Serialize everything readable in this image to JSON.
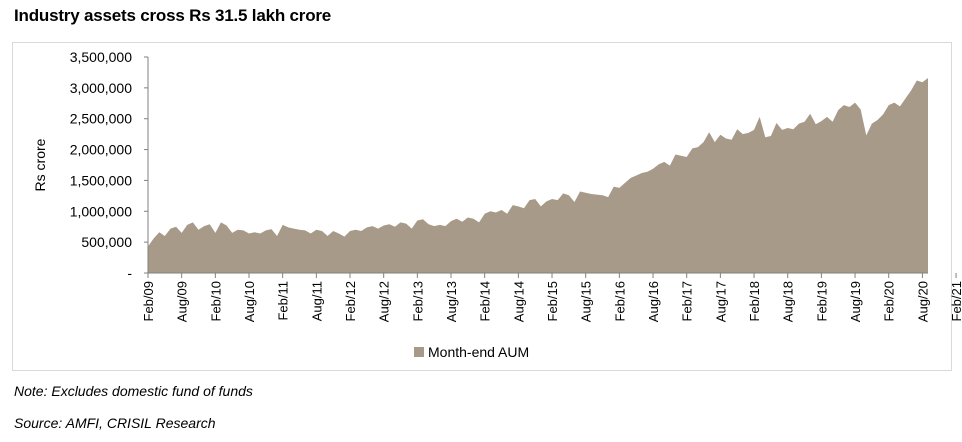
{
  "title": "Industry assets cross Rs 31.5 lakh crore",
  "note": "Note: Excludes domestic fund of funds",
  "source": "Source: AMFI, CRISIL Research",
  "colors": {
    "area": "#a79a89",
    "axis": "#808080"
  },
  "chart_data": {
    "type": "area",
    "ylabel": "Rs crore",
    "ylim": [
      0,
      3500000
    ],
    "yticks": [
      {
        "value": 0,
        "label": "-"
      },
      {
        "value": 500000,
        "label": "500,000"
      },
      {
        "value": 1000000,
        "label": "1,000,000"
      },
      {
        "value": 1500000,
        "label": "1,500,000"
      },
      {
        "value": 2000000,
        "label": "2,000,000"
      },
      {
        "value": 2500000,
        "label": "2,500,000"
      },
      {
        "value": 3000000,
        "label": "3,000,000"
      },
      {
        "value": 3500000,
        "label": "3,500,000"
      }
    ],
    "xtick_labels": [
      "Feb/09",
      "Aug/09",
      "Feb/10",
      "Aug/10",
      "Feb/11",
      "Aug/11",
      "Feb/12",
      "Aug/12",
      "Feb/13",
      "Aug/13",
      "Feb/14",
      "Aug/14",
      "Feb/15",
      "Aug/15",
      "Feb/16",
      "Aug/16",
      "Feb/17",
      "Aug/17",
      "Feb/18",
      "Aug/18",
      "Feb/19",
      "Aug/19",
      "Feb/20",
      "Aug/20",
      "Feb/21"
    ],
    "legend": "bottom",
    "series": [
      {
        "name": "Month-end AUM",
        "start": "Feb/09",
        "frequency": "monthly",
        "values": [
          430000,
          560000,
          660000,
          600000,
          720000,
          750000,
          650000,
          780000,
          820000,
          700000,
          760000,
          790000,
          650000,
          820000,
          770000,
          650000,
          700000,
          690000,
          640000,
          660000,
          640000,
          690000,
          710000,
          600000,
          780000,
          740000,
          720000,
          700000,
          690000,
          640000,
          700000,
          680000,
          600000,
          680000,
          640000,
          590000,
          680000,
          700000,
          680000,
          740000,
          760000,
          720000,
          770000,
          790000,
          750000,
          820000,
          800000,
          720000,
          850000,
          870000,
          790000,
          760000,
          780000,
          760000,
          840000,
          880000,
          830000,
          900000,
          880000,
          820000,
          960000,
          1000000,
          980000,
          1020000,
          960000,
          1100000,
          1080000,
          1050000,
          1180000,
          1200000,
          1080000,
          1160000,
          1200000,
          1180000,
          1290000,
          1260000,
          1150000,
          1320000,
          1300000,
          1280000,
          1270000,
          1260000,
          1230000,
          1400000,
          1380000,
          1460000,
          1540000,
          1580000,
          1620000,
          1640000,
          1690000,
          1760000,
          1800000,
          1740000,
          1920000,
          1900000,
          1880000,
          2020000,
          2040000,
          2120000,
          2280000,
          2120000,
          2240000,
          2180000,
          2160000,
          2330000,
          2250000,
          2270000,
          2320000,
          2530000,
          2200000,
          2220000,
          2430000,
          2320000,
          2350000,
          2330000,
          2420000,
          2450000,
          2580000,
          2410000,
          2460000,
          2530000,
          2450000,
          2640000,
          2720000,
          2690000,
          2760000,
          2650000,
          2230000,
          2420000,
          2480000,
          2570000,
          2720000,
          2760000,
          2700000,
          2830000,
          2960000,
          3120000,
          3090000,
          3160000
        ]
      }
    ]
  }
}
